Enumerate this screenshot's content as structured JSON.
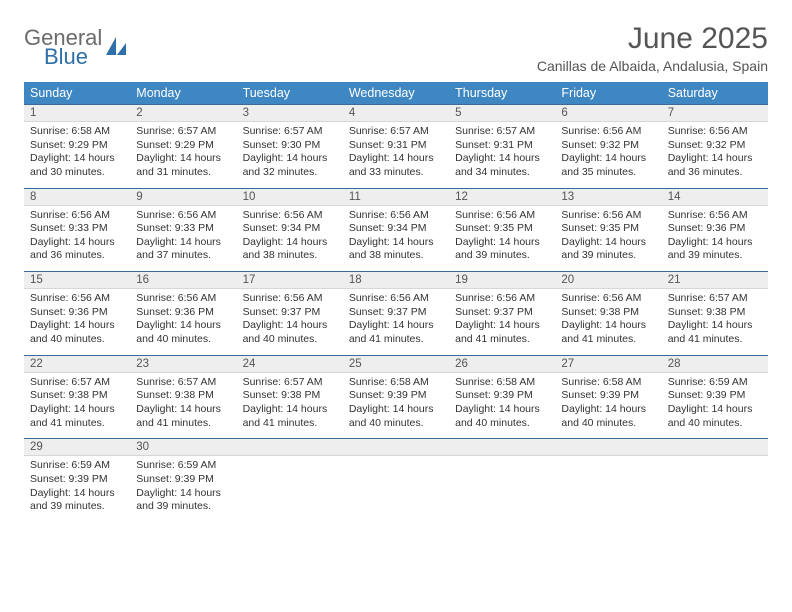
{
  "logo": {
    "word1": "General",
    "word2": "Blue",
    "mark_color": "#2f6fa8",
    "text_gray": "#6b6b6b"
  },
  "title": "June 2025",
  "location": "Canillas de Albaida, Andalusia, Spain",
  "colors": {
    "header_bg": "#3e87c3",
    "header_text": "#ffffff",
    "daynum_bg": "#eeeeee",
    "daynum_border_top": "#3e6a96",
    "body_text": "#333333"
  },
  "day_headers": [
    "Sunday",
    "Monday",
    "Tuesday",
    "Wednesday",
    "Thursday",
    "Friday",
    "Saturday"
  ],
  "weeks": [
    [
      {
        "num": "1",
        "sunrise": "6:58 AM",
        "sunset": "9:29 PM",
        "daylight": "14 hours and 30 minutes."
      },
      {
        "num": "2",
        "sunrise": "6:57 AM",
        "sunset": "9:29 PM",
        "daylight": "14 hours and 31 minutes."
      },
      {
        "num": "3",
        "sunrise": "6:57 AM",
        "sunset": "9:30 PM",
        "daylight": "14 hours and 32 minutes."
      },
      {
        "num": "4",
        "sunrise": "6:57 AM",
        "sunset": "9:31 PM",
        "daylight": "14 hours and 33 minutes."
      },
      {
        "num": "5",
        "sunrise": "6:57 AM",
        "sunset": "9:31 PM",
        "daylight": "14 hours and 34 minutes."
      },
      {
        "num": "6",
        "sunrise": "6:56 AM",
        "sunset": "9:32 PM",
        "daylight": "14 hours and 35 minutes."
      },
      {
        "num": "7",
        "sunrise": "6:56 AM",
        "sunset": "9:32 PM",
        "daylight": "14 hours and 36 minutes."
      }
    ],
    [
      {
        "num": "8",
        "sunrise": "6:56 AM",
        "sunset": "9:33 PM",
        "daylight": "14 hours and 36 minutes."
      },
      {
        "num": "9",
        "sunrise": "6:56 AM",
        "sunset": "9:33 PM",
        "daylight": "14 hours and 37 minutes."
      },
      {
        "num": "10",
        "sunrise": "6:56 AM",
        "sunset": "9:34 PM",
        "daylight": "14 hours and 38 minutes."
      },
      {
        "num": "11",
        "sunrise": "6:56 AM",
        "sunset": "9:34 PM",
        "daylight": "14 hours and 38 minutes."
      },
      {
        "num": "12",
        "sunrise": "6:56 AM",
        "sunset": "9:35 PM",
        "daylight": "14 hours and 39 minutes."
      },
      {
        "num": "13",
        "sunrise": "6:56 AM",
        "sunset": "9:35 PM",
        "daylight": "14 hours and 39 minutes."
      },
      {
        "num": "14",
        "sunrise": "6:56 AM",
        "sunset": "9:36 PM",
        "daylight": "14 hours and 39 minutes."
      }
    ],
    [
      {
        "num": "15",
        "sunrise": "6:56 AM",
        "sunset": "9:36 PM",
        "daylight": "14 hours and 40 minutes."
      },
      {
        "num": "16",
        "sunrise": "6:56 AM",
        "sunset": "9:36 PM",
        "daylight": "14 hours and 40 minutes."
      },
      {
        "num": "17",
        "sunrise": "6:56 AM",
        "sunset": "9:37 PM",
        "daylight": "14 hours and 40 minutes."
      },
      {
        "num": "18",
        "sunrise": "6:56 AM",
        "sunset": "9:37 PM",
        "daylight": "14 hours and 41 minutes."
      },
      {
        "num": "19",
        "sunrise": "6:56 AM",
        "sunset": "9:37 PM",
        "daylight": "14 hours and 41 minutes."
      },
      {
        "num": "20",
        "sunrise": "6:56 AM",
        "sunset": "9:38 PM",
        "daylight": "14 hours and 41 minutes."
      },
      {
        "num": "21",
        "sunrise": "6:57 AM",
        "sunset": "9:38 PM",
        "daylight": "14 hours and 41 minutes."
      }
    ],
    [
      {
        "num": "22",
        "sunrise": "6:57 AM",
        "sunset": "9:38 PM",
        "daylight": "14 hours and 41 minutes."
      },
      {
        "num": "23",
        "sunrise": "6:57 AM",
        "sunset": "9:38 PM",
        "daylight": "14 hours and 41 minutes."
      },
      {
        "num": "24",
        "sunrise": "6:57 AM",
        "sunset": "9:38 PM",
        "daylight": "14 hours and 41 minutes."
      },
      {
        "num": "25",
        "sunrise": "6:58 AM",
        "sunset": "9:39 PM",
        "daylight": "14 hours and 40 minutes."
      },
      {
        "num": "26",
        "sunrise": "6:58 AM",
        "sunset": "9:39 PM",
        "daylight": "14 hours and 40 minutes."
      },
      {
        "num": "27",
        "sunrise": "6:58 AM",
        "sunset": "9:39 PM",
        "daylight": "14 hours and 40 minutes."
      },
      {
        "num": "28",
        "sunrise": "6:59 AM",
        "sunset": "9:39 PM",
        "daylight": "14 hours and 40 minutes."
      }
    ],
    [
      {
        "num": "29",
        "sunrise": "6:59 AM",
        "sunset": "9:39 PM",
        "daylight": "14 hours and 39 minutes."
      },
      {
        "num": "30",
        "sunrise": "6:59 AM",
        "sunset": "9:39 PM",
        "daylight": "14 hours and 39 minutes."
      },
      null,
      null,
      null,
      null,
      null
    ]
  ],
  "labels": {
    "sunrise": "Sunrise: ",
    "sunset": "Sunset: ",
    "daylight": "Daylight: "
  }
}
